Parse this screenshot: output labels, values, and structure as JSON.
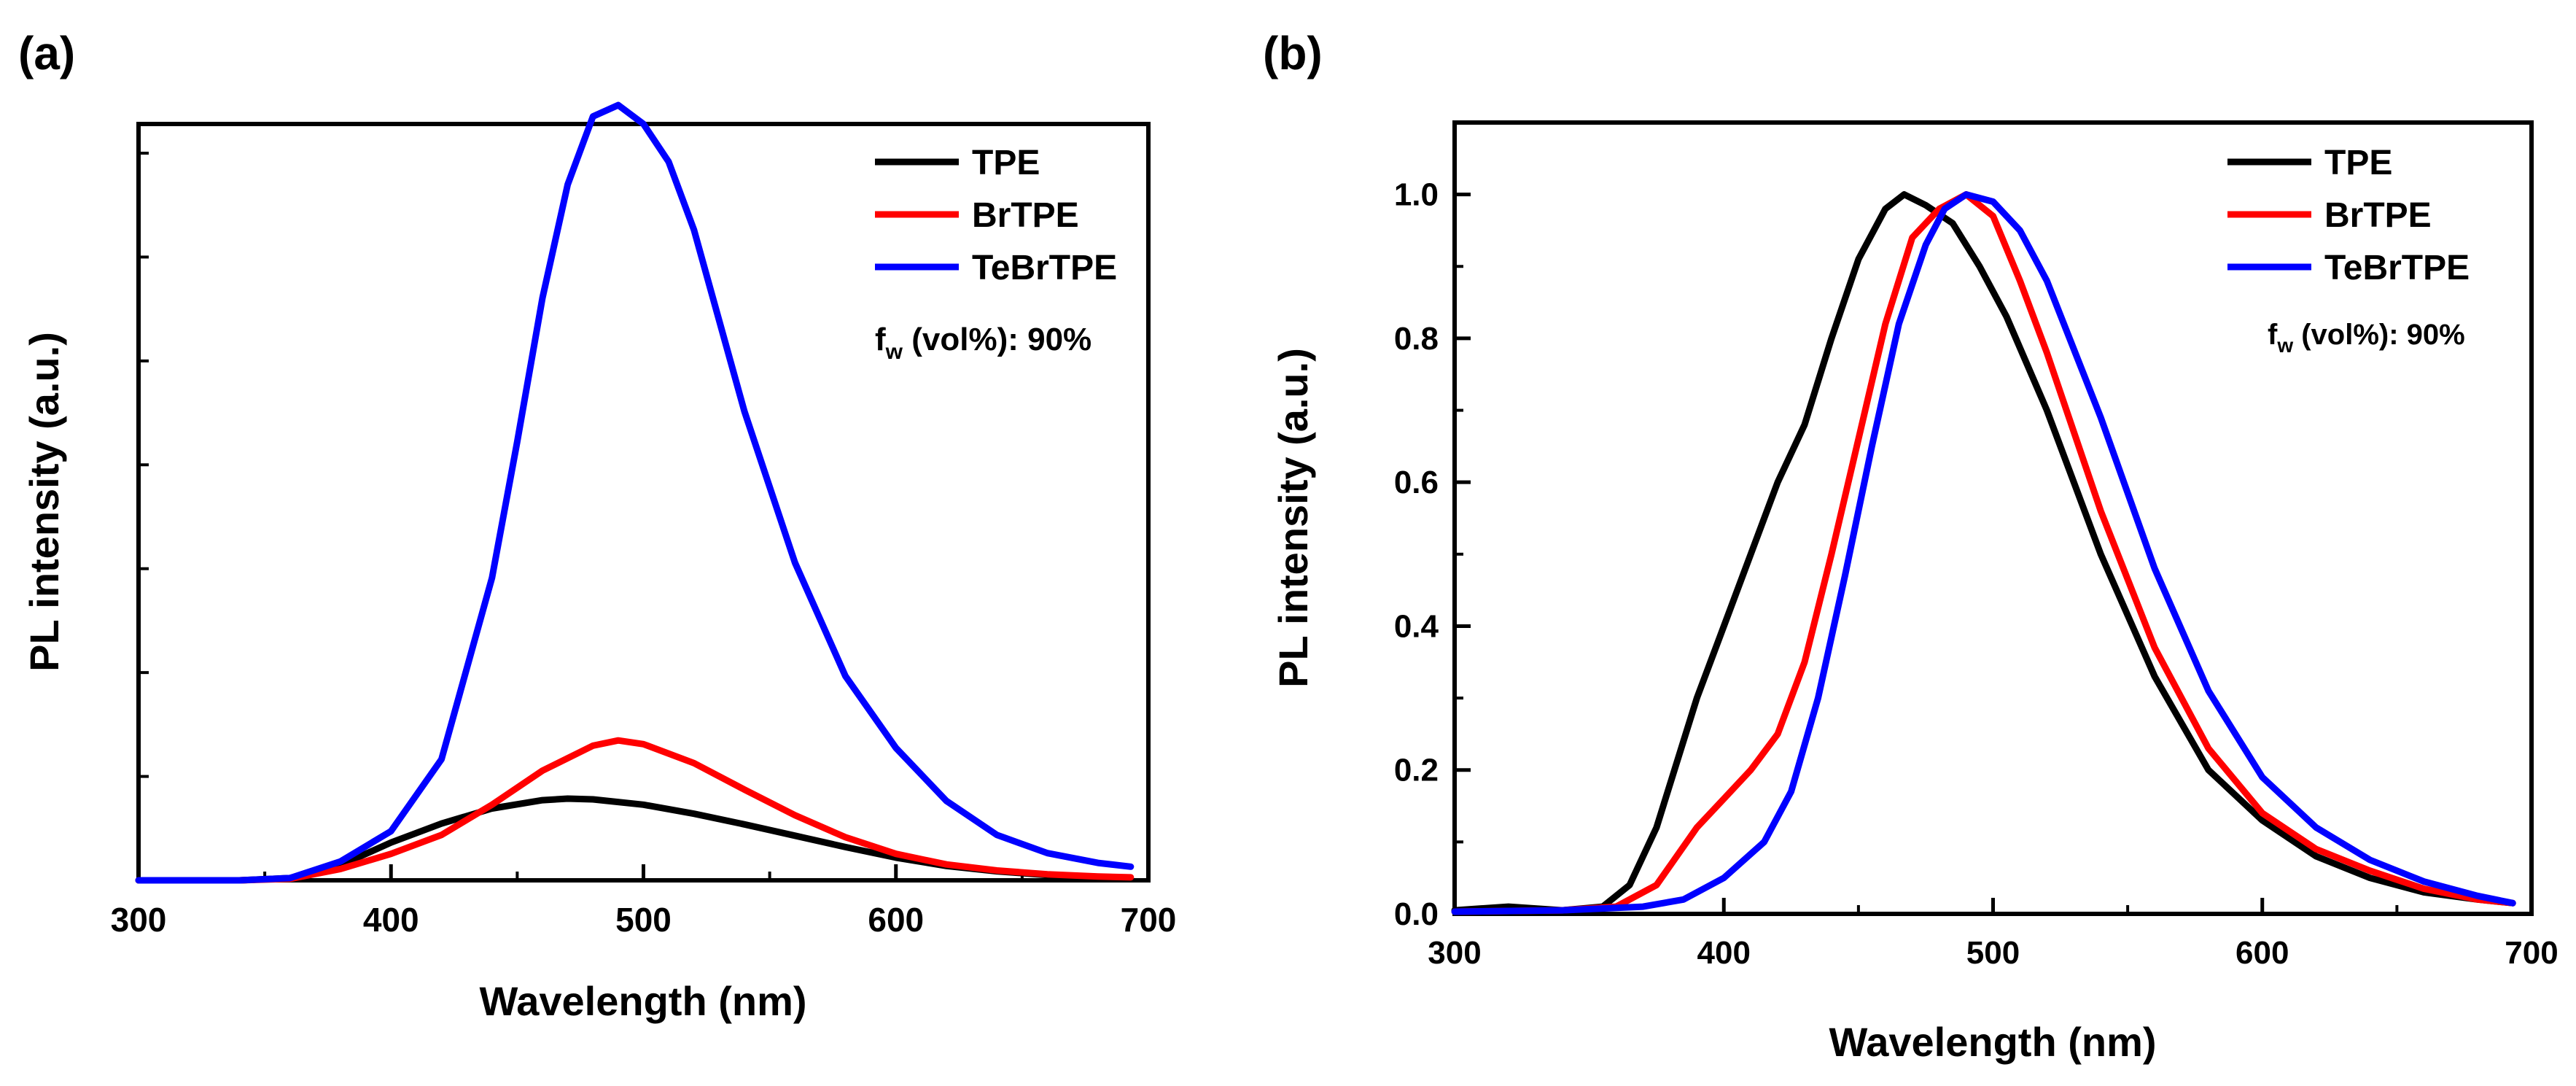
{
  "chart_data": [
    {
      "panel_label": "(a)",
      "type": "line",
      "xlabel": "Wavelength (nm)",
      "ylabel": "PL intensity (a.u.)",
      "xlim": [
        300,
        700
      ],
      "ylim": [
        0,
        100
      ],
      "x_ticks": [
        "300",
        "400",
        "500",
        "600",
        "700"
      ],
      "y_tick_labels_shown": false,
      "legend_position": "top-right",
      "annotation": {
        "main": "f",
        "sub": "w",
        "rest": " (vol%): 90%"
      },
      "series": [
        {
          "name": "TPE",
          "color": "#000000",
          "x": [
            300,
            340,
            360,
            380,
            400,
            420,
            440,
            460,
            470,
            480,
            500,
            520,
            540,
            560,
            580,
            600,
            620,
            640,
            660,
            680,
            693
          ],
          "y": [
            0,
            0,
            0.3,
            2,
            5,
            7.5,
            9.5,
            10.6,
            10.8,
            10.7,
            10,
            8.8,
            7.4,
            5.9,
            4.4,
            3.0,
            1.9,
            1.2,
            0.7,
            0.4,
            0.2
          ]
        },
        {
          "name": "BrTPE",
          "color": "#ff0000",
          "x": [
            300,
            340,
            360,
            380,
            400,
            420,
            440,
            460,
            480,
            490,
            500,
            520,
            540,
            560,
            580,
            600,
            620,
            640,
            660,
            680,
            693
          ],
          "y": [
            0,
            0,
            0.2,
            1.5,
            3.5,
            6,
            10,
            14.5,
            17.8,
            18.5,
            18,
            15.5,
            12,
            8.6,
            5.7,
            3.5,
            2.1,
            1.3,
            0.8,
            0.5,
            0.4
          ]
        },
        {
          "name": "TeBrTPE",
          "color": "#0000ff",
          "x": [
            300,
            340,
            360,
            380,
            400,
            420,
            440,
            450,
            460,
            470,
            480,
            490,
            500,
            510,
            520,
            540,
            560,
            580,
            600,
            620,
            640,
            660,
            680,
            693
          ],
          "y": [
            0,
            0,
            0.3,
            2.5,
            6.5,
            16,
            40,
            58,
            77,
            92,
            101,
            102.5,
            100,
            95,
            86,
            62,
            42,
            27,
            17.5,
            10.5,
            6,
            3.6,
            2.3,
            1.8
          ]
        }
      ]
    },
    {
      "panel_label": "(b)",
      "type": "line",
      "xlabel": "Wavelength (nm)",
      "ylabel": "PL intensity (a.u.)",
      "xlim": [
        300,
        700
      ],
      "ylim": [
        0,
        1.1
      ],
      "x_ticks": [
        "300",
        "400",
        "500",
        "600",
        "700"
      ],
      "y_ticks": [
        "0.0",
        "0.2",
        "0.4",
        "0.6",
        "0.8",
        "1.0"
      ],
      "legend_position": "top-right",
      "annotation": {
        "main": "f",
        "sub": "w",
        "rest": " (vol%): 90%"
      },
      "series": [
        {
          "name": "TPE",
          "color": "#000000",
          "x": [
            300,
            320,
            340,
            355,
            365,
            375,
            390,
            400,
            410,
            420,
            430,
            440,
            450,
            460,
            467,
            475,
            485,
            495,
            505,
            520,
            540,
            560,
            580,
            600,
            620,
            640,
            660,
            680,
            693
          ],
          "y": [
            0.005,
            0.01,
            0.005,
            0.01,
            0.04,
            0.12,
            0.3,
            0.4,
            0.5,
            0.6,
            0.68,
            0.8,
            0.91,
            0.98,
            1.0,
            0.985,
            0.96,
            0.9,
            0.83,
            0.7,
            0.5,
            0.33,
            0.2,
            0.13,
            0.08,
            0.05,
            0.03,
            0.02,
            0.015
          ]
        },
        {
          "name": "BrTPE",
          "color": "#ff0000",
          "x": [
            300,
            340,
            360,
            375,
            390,
            400,
            410,
            420,
            430,
            440,
            450,
            460,
            470,
            480,
            490,
            500,
            510,
            520,
            540,
            560,
            580,
            600,
            620,
            640,
            660,
            680,
            693
          ],
          "y": [
            0.003,
            0.005,
            0.01,
            0.04,
            0.12,
            0.16,
            0.2,
            0.25,
            0.35,
            0.5,
            0.66,
            0.82,
            0.94,
            0.98,
            1.0,
            0.97,
            0.88,
            0.78,
            0.56,
            0.37,
            0.23,
            0.14,
            0.09,
            0.06,
            0.035,
            0.02,
            0.015
          ]
        },
        {
          "name": "TeBrTPE",
          "color": "#0000ff",
          "x": [
            300,
            340,
            370,
            385,
            400,
            415,
            425,
            435,
            445,
            455,
            465,
            475,
            482,
            490,
            500,
            510,
            520,
            540,
            560,
            580,
            600,
            620,
            640,
            660,
            680,
            693
          ],
          "y": [
            0.003,
            0.005,
            0.01,
            0.02,
            0.05,
            0.1,
            0.17,
            0.3,
            0.47,
            0.65,
            0.82,
            0.93,
            0.98,
            1.0,
            0.99,
            0.95,
            0.88,
            0.69,
            0.48,
            0.31,
            0.19,
            0.12,
            0.075,
            0.045,
            0.025,
            0.015
          ]
        }
      ]
    }
  ]
}
